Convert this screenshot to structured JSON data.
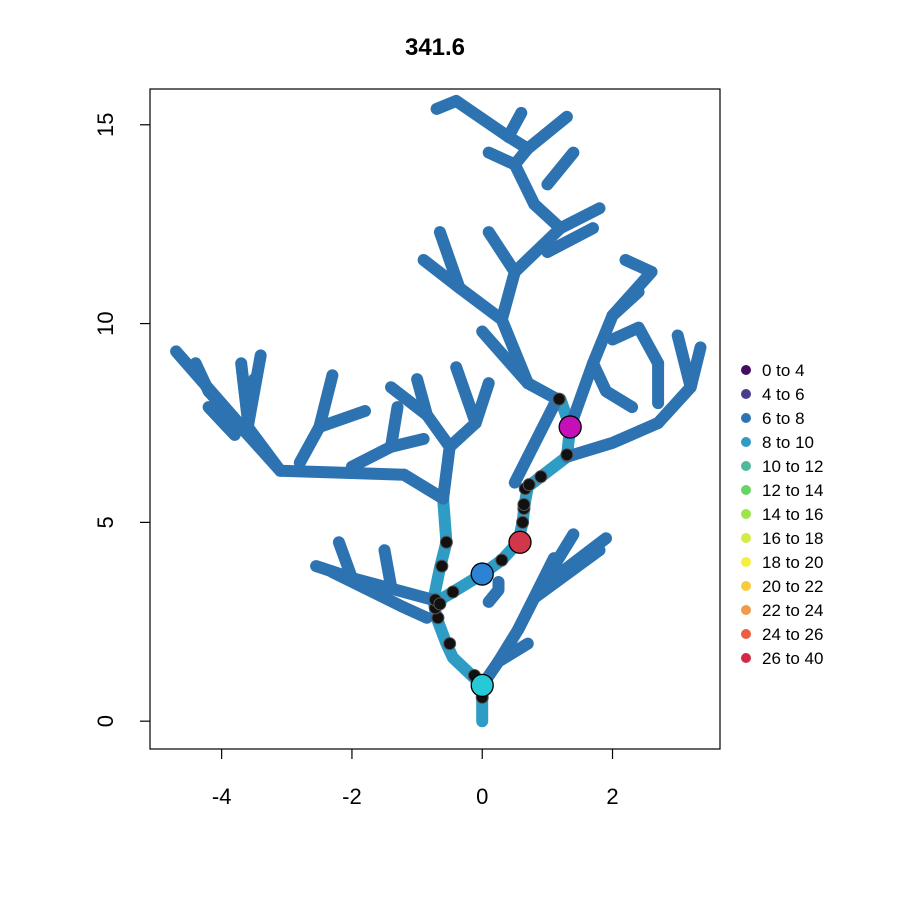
{
  "chart_data": {
    "type": "scatter",
    "title": "341.6",
    "xlabel": "",
    "ylabel": "",
    "xlim": [
      -5.1,
      3.65
    ],
    "ylim": [
      -0.7,
      15.9
    ],
    "x_ticks": [
      -4,
      -2,
      0,
      2
    ],
    "y_ticks": [
      0,
      5,
      10,
      15
    ],
    "legend": {
      "placement": "right",
      "entries": [
        {
          "label": "0 to 4",
          "color": "#440c62"
        },
        {
          "label": "4 to 6",
          "color": "#4b3d8e"
        },
        {
          "label": "6 to 8",
          "color": "#2d73b1"
        },
        {
          "label": "8 to 10",
          "color": "#2e9cc4"
        },
        {
          "label": "10 to 12",
          "color": "#4fb99c"
        },
        {
          "label": "12 to 14",
          "color": "#68d562"
        },
        {
          "label": "14 to 16",
          "color": "#9de54a"
        },
        {
          "label": "16 to 18",
          "color": "#d6ec44"
        },
        {
          "label": "18 to 20",
          "color": "#f7ef3e"
        },
        {
          "label": "20 to 22",
          "color": "#f8ca3d"
        },
        {
          "label": "22 to 24",
          "color": "#f39b4a"
        },
        {
          "label": "24 to 26",
          "color": "#ec6041"
        },
        {
          "label": "26 to 40",
          "color": "#d22a45"
        }
      ]
    },
    "network_segments": [
      {
        "points": [
          [
            0,
            0
          ],
          [
            0,
            0.9
          ]
        ],
        "class": "8 to 10"
      },
      {
        "points": [
          [
            0,
            0.9
          ],
          [
            -0.45,
            1.6
          ],
          [
            -0.55,
            1.95
          ],
          [
            -0.7,
            2.6
          ],
          [
            -0.75,
            3.05
          ],
          [
            -0.65,
            3.85
          ],
          [
            -0.55,
            4.5
          ],
          [
            -0.6,
            5.6
          ]
        ],
        "class": "8 to 10"
      },
      {
        "points": [
          [
            -0.7,
            3.0
          ],
          [
            -0.45,
            3.25
          ],
          [
            0,
            3.7
          ],
          [
            0.3,
            4.05
          ],
          [
            0.55,
            4.5
          ],
          [
            0.62,
            5.0
          ],
          [
            0.65,
            5.45
          ],
          [
            0.7,
            5.9
          ],
          [
            0.9,
            6.15
          ],
          [
            1.3,
            6.65
          ],
          [
            1.35,
            7.4
          ],
          [
            1.2,
            8.1
          ]
        ],
        "class": "8 to 10"
      },
      {
        "points": [
          [
            1.3,
            6.65
          ],
          [
            2.0,
            7.0
          ],
          [
            2.7,
            7.5
          ]
        ],
        "class": "6 to 8"
      },
      {
        "points": [
          [
            -0.75,
            3.05
          ],
          [
            -2.0,
            3.6
          ],
          [
            -2.55,
            3.9
          ]
        ],
        "class": "6 to 8"
      },
      {
        "points": [
          [
            -2.0,
            3.6
          ],
          [
            -2.2,
            4.5
          ]
        ],
        "class": "6 to 8"
      },
      {
        "points": [
          [
            -1.4,
            3.4
          ],
          [
            -1.5,
            4.3
          ]
        ],
        "class": "6 to 8"
      },
      {
        "points": [
          [
            -0.85,
            2.6
          ],
          [
            -1.25,
            2.9
          ],
          [
            -2.3,
            3.75
          ]
        ],
        "class": "6 to 8"
      },
      {
        "points": [
          [
            -0.6,
            5.6
          ],
          [
            -1.2,
            6.2
          ],
          [
            -3.1,
            6.3
          ],
          [
            -4.2,
            8.3
          ]
        ],
        "class": "6 to 8"
      },
      {
        "points": [
          [
            -3.1,
            6.3
          ],
          [
            -4.7,
            9.3
          ]
        ],
        "class": "6 to 8"
      },
      {
        "points": [
          [
            -4.2,
            8.3
          ],
          [
            -4.4,
            9.0
          ]
        ],
        "class": "6 to 8"
      },
      {
        "points": [
          [
            -3.6,
            7.6
          ],
          [
            -3.7,
            9.0
          ]
        ],
        "class": "6 to 8"
      },
      {
        "points": [
          [
            -3.1,
            6.3
          ],
          [
            -3.6,
            7.4
          ],
          [
            -3.5,
            8.6
          ]
        ],
        "class": "6 to 8"
      },
      {
        "points": [
          [
            -3.6,
            7.4
          ],
          [
            -3.4,
            9.2
          ]
        ],
        "class": "6 to 8"
      },
      {
        "points": [
          [
            -3.8,
            7.2
          ],
          [
            -4.2,
            7.9
          ]
        ],
        "class": "6 to 8"
      },
      {
        "points": [
          [
            -2.8,
            6.5
          ],
          [
            -2.5,
            7.4
          ],
          [
            -2.3,
            8.7
          ]
        ],
        "class": "6 to 8"
      },
      {
        "points": [
          [
            -2.5,
            7.4
          ],
          [
            -1.8,
            7.8
          ]
        ],
        "class": "6 to 8"
      },
      {
        "points": [
          [
            -2.0,
            6.4
          ],
          [
            -1.4,
            6.9
          ],
          [
            -1.3,
            7.9
          ]
        ],
        "class": "6 to 8"
      },
      {
        "points": [
          [
            -1.4,
            6.9
          ],
          [
            -0.9,
            7.1
          ]
        ],
        "class": "6 to 8"
      },
      {
        "points": [
          [
            -1.2,
            6.2
          ],
          [
            -0.6,
            5.6
          ]
        ],
        "class": "6 to 8"
      },
      {
        "points": [
          [
            -0.6,
            5.6
          ],
          [
            -0.5,
            6.9
          ],
          [
            -0.85,
            7.7
          ],
          [
            -1.4,
            8.4
          ]
        ],
        "class": "6 to 8"
      },
      {
        "points": [
          [
            -0.85,
            7.7
          ],
          [
            -1.0,
            8.6
          ]
        ],
        "class": "6 to 8"
      },
      {
        "points": [
          [
            -0.5,
            6.9
          ],
          [
            -0.1,
            7.5
          ],
          [
            0.1,
            8.5
          ]
        ],
        "class": "6 to 8"
      },
      {
        "points": [
          [
            -0.1,
            7.5
          ],
          [
            -0.4,
            8.9
          ]
        ],
        "class": "6 to 8"
      },
      {
        "points": [
          [
            0.1,
            3.0
          ],
          [
            0.25,
            3.3
          ],
          [
            0.25,
            3.5
          ]
        ],
        "class": "6 to 8"
      },
      {
        "points": [
          [
            0.0,
            0.9
          ],
          [
            0.25,
            1.5
          ],
          [
            0.7,
            1.95
          ]
        ],
        "class": "6 to 8"
      },
      {
        "points": [
          [
            0.25,
            1.5
          ],
          [
            0.55,
            2.3
          ],
          [
            1.1,
            4.1
          ]
        ],
        "class": "6 to 8"
      },
      {
        "points": [
          [
            0.55,
            2.3
          ],
          [
            0.8,
            3.1
          ],
          [
            1.4,
            4.7
          ]
        ],
        "class": "6 to 8"
      },
      {
        "points": [
          [
            0.8,
            3.1
          ],
          [
            1.8,
            4.3
          ]
        ],
        "class": "6 to 8"
      },
      {
        "points": [
          [
            1.1,
            3.6
          ],
          [
            1.9,
            4.6
          ]
        ],
        "class": "6 to 8"
      },
      {
        "points": [
          [
            0.5,
            6.0
          ],
          [
            1.15,
            8.1
          ],
          [
            0.7,
            8.5
          ],
          [
            0.0,
            9.8
          ]
        ],
        "class": "6 to 8"
      },
      {
        "points": [
          [
            0.7,
            8.5
          ],
          [
            0.3,
            10.1
          ],
          [
            -0.35,
            10.9
          ],
          [
            -0.9,
            11.6
          ]
        ],
        "class": "6 to 8"
      },
      {
        "points": [
          [
            -0.35,
            10.9
          ],
          [
            -0.65,
            12.3
          ]
        ],
        "class": "6 to 8"
      },
      {
        "points": [
          [
            0.3,
            10.1
          ],
          [
            0.5,
            11.3
          ],
          [
            0.1,
            12.3
          ]
        ],
        "class": "6 to 8"
      },
      {
        "points": [
          [
            0.5,
            11.3
          ],
          [
            1.2,
            12.4
          ],
          [
            1.8,
            12.9
          ]
        ],
        "class": "6 to 8"
      },
      {
        "points": [
          [
            1.2,
            12.4
          ],
          [
            0.8,
            13.0
          ],
          [
            0.5,
            14.0
          ],
          [
            0.1,
            14.3
          ]
        ],
        "class": "6 to 8"
      },
      {
        "points": [
          [
            0.5,
            14.0
          ],
          [
            0.7,
            14.4
          ],
          [
            1.3,
            15.2
          ]
        ],
        "class": "6 to 8"
      },
      {
        "points": [
          [
            0.7,
            14.4
          ],
          [
            0.4,
            14.7
          ],
          [
            -0.4,
            15.6
          ],
          [
            -0.7,
            15.4
          ]
        ],
        "class": "6 to 8"
      },
      {
        "points": [
          [
            0.4,
            14.7
          ],
          [
            0.6,
            15.3
          ]
        ],
        "class": "6 to 8"
      },
      {
        "points": [
          [
            1.0,
            13.5
          ],
          [
            1.4,
            14.3
          ]
        ],
        "class": "6 to 8"
      },
      {
        "points": [
          [
            1.0,
            11.8
          ],
          [
            1.7,
            12.4
          ]
        ],
        "class": "6 to 8"
      },
      {
        "points": [
          [
            1.35,
            7.4
          ],
          [
            1.7,
            9.0
          ],
          [
            2.0,
            10.2
          ],
          [
            2.6,
            11.3
          ],
          [
            2.2,
            11.6
          ]
        ],
        "class": "6 to 8"
      },
      {
        "points": [
          [
            2.0,
            10.2
          ],
          [
            2.4,
            10.8
          ]
        ],
        "class": "6 to 8"
      },
      {
        "points": [
          [
            1.7,
            9.0
          ],
          [
            1.9,
            8.3
          ],
          [
            2.3,
            7.9
          ]
        ],
        "class": "6 to 8"
      },
      {
        "points": [
          [
            2.7,
            7.5
          ],
          [
            3.2,
            8.4
          ],
          [
            3.35,
            9.4
          ]
        ],
        "class": "6 to 8"
      },
      {
        "points": [
          [
            3.2,
            8.4
          ],
          [
            3.0,
            9.7
          ]
        ],
        "class": "6 to 8"
      },
      {
        "points": [
          [
            2.0,
            9.6
          ],
          [
            2.4,
            9.9
          ],
          [
            2.7,
            9.0
          ]
        ],
        "class": "6 to 8"
      },
      {
        "points": [
          [
            2.7,
            9.0
          ],
          [
            2.7,
            8.0
          ]
        ],
        "class": "6 to 8"
      }
    ],
    "monitors": [
      {
        "x": 0.0,
        "y": 0.9,
        "radius": 11,
        "color": "#26c9d6"
      },
      {
        "x": 0.0,
        "y": 3.7,
        "radius": 11,
        "color": "#2c83d6"
      },
      {
        "x": 0.58,
        "y": 4.5,
        "radius": 11,
        "color": "#d2364a"
      },
      {
        "x": 1.35,
        "y": 7.4,
        "radius": 11,
        "color": "#c50fb8"
      }
    ],
    "sample_points": [
      {
        "x": 0.0,
        "y": 0.6
      },
      {
        "x": -0.12,
        "y": 1.15
      },
      {
        "x": -0.5,
        "y": 1.95
      },
      {
        "x": -0.68,
        "y": 2.6
      },
      {
        "x": -0.72,
        "y": 2.85
      },
      {
        "x": -0.72,
        "y": 3.05
      },
      {
        "x": -0.65,
        "y": 2.95
      },
      {
        "x": -0.45,
        "y": 3.25
      },
      {
        "x": -0.62,
        "y": 3.9
      },
      {
        "x": -0.55,
        "y": 4.5
      },
      {
        "x": 0.3,
        "y": 4.05
      },
      {
        "x": 0.62,
        "y": 5.0
      },
      {
        "x": 0.64,
        "y": 5.35
      },
      {
        "x": 0.64,
        "y": 5.45
      },
      {
        "x": 0.66,
        "y": 5.85
      },
      {
        "x": 0.72,
        "y": 5.95
      },
      {
        "x": 0.9,
        "y": 6.15
      },
      {
        "x": 1.3,
        "y": 6.7
      },
      {
        "x": 1.18,
        "y": 8.1
      }
    ]
  }
}
